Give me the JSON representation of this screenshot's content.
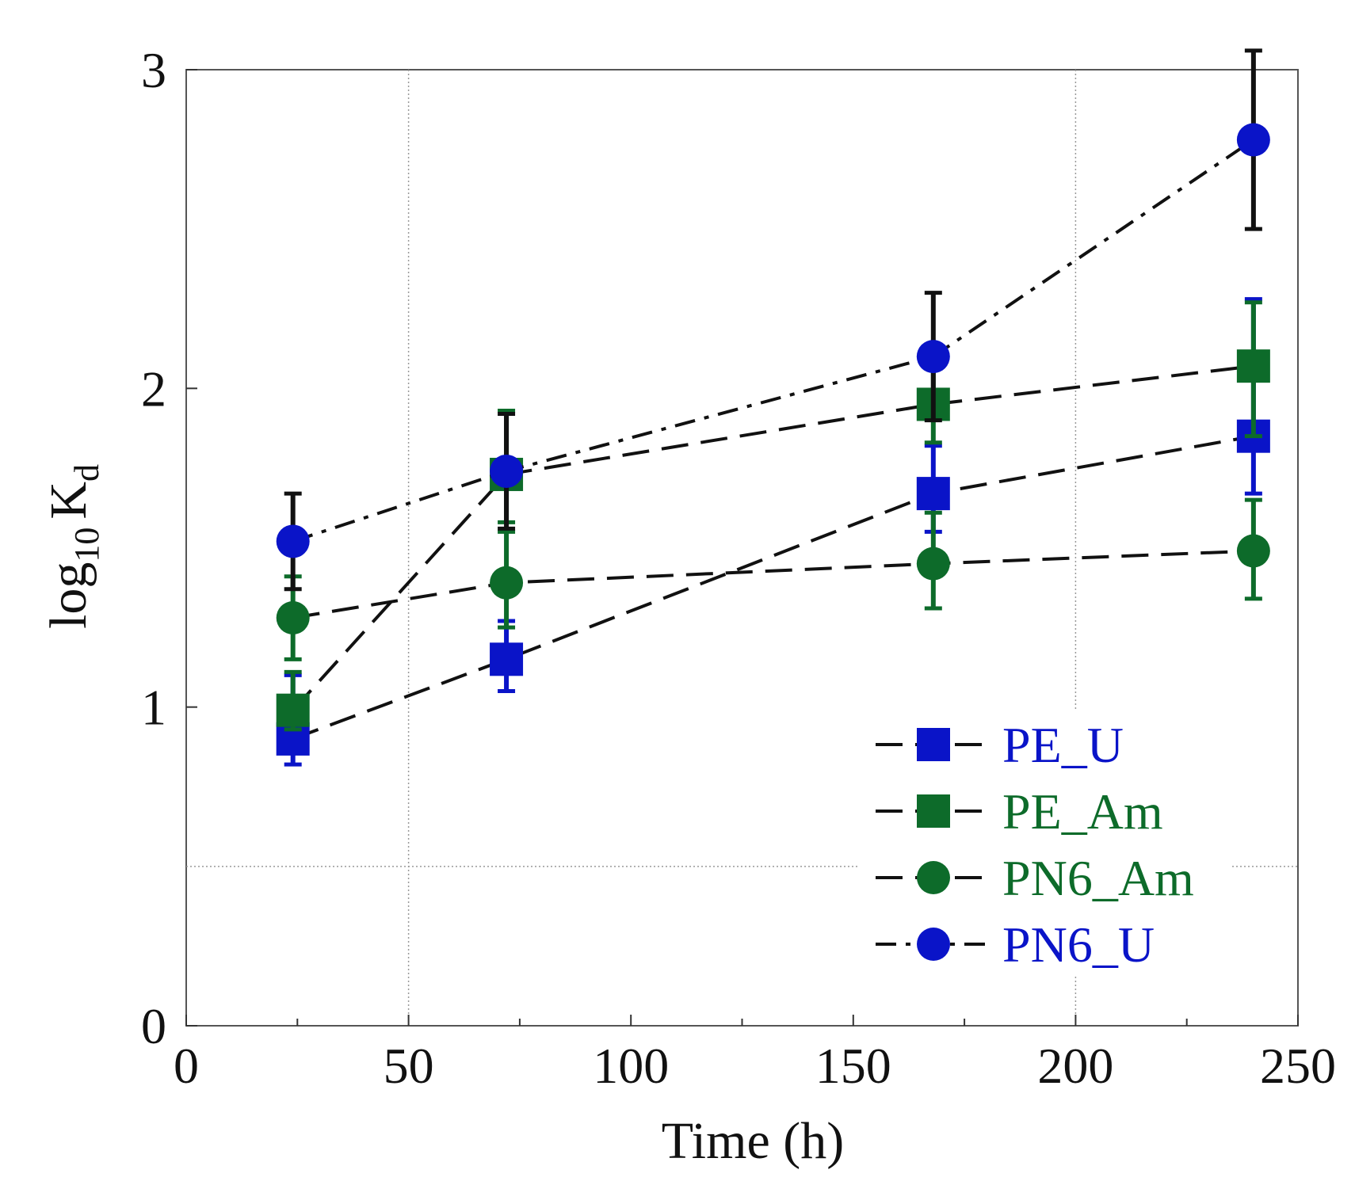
{
  "chart_data": {
    "type": "line",
    "xlabel": "Time (h)",
    "ylabel_main": "log",
    "ylabel_sub": "10",
    "ylabel_var": "K",
    "ylabel_var_sub": "d",
    "xlim": [
      0,
      250
    ],
    "ylim": [
      0,
      3
    ],
    "xticks": [
      0,
      50,
      100,
      150,
      200,
      250
    ],
    "xtick_labels": [
      "0",
      "50",
      "100",
      "150",
      "200",
      "250"
    ],
    "yticks": [
      0,
      1,
      2,
      3
    ],
    "ytick_labels": [
      "0",
      "1",
      "2",
      "3"
    ],
    "grid": {
      "vertical_x": [
        50,
        200
      ],
      "horizontal_y": [
        0.5
      ]
    },
    "legend_position": "bottom-right",
    "series": [
      {
        "name": "PE_U",
        "marker": "square",
        "color": "#0a14c8",
        "dash": "long",
        "x": [
          24,
          72,
          168,
          240
        ],
        "y": [
          0.9,
          1.15,
          1.67,
          1.85
        ],
        "err_low": [
          0.08,
          0.1,
          0.12,
          0.18
        ],
        "err_high": [
          0.2,
          0.12,
          0.15,
          0.43
        ]
      },
      {
        "name": "PE_Am",
        "marker": "square",
        "color": "#0d6b2a",
        "dash": "long",
        "x": [
          24,
          72,
          168,
          240
        ],
        "y": [
          0.99,
          1.73,
          1.95,
          2.07
        ],
        "err_low": [
          0.06,
          0.15,
          0.12,
          0.22
        ],
        "err_high": [
          0.12,
          0.2,
          0.12,
          0.2
        ]
      },
      {
        "name": "PN6_Am",
        "marker": "circle",
        "color": "#0d6b2a",
        "dash": "long",
        "x": [
          24,
          72,
          168,
          240
        ],
        "y": [
          1.28,
          1.39,
          1.45,
          1.49
        ],
        "err_low": [
          0.13,
          0.14,
          0.14,
          0.15
        ],
        "err_high": [
          0.13,
          0.16,
          0.16,
          0.16
        ]
      },
      {
        "name": "PN6_U",
        "marker": "circle",
        "color": "#0a14c8",
        "dash": "dashdot",
        "x": [
          24,
          72,
          168,
          240
        ],
        "y": [
          1.52,
          1.74,
          2.1,
          2.78
        ],
        "err_low": [
          0.15,
          0.18,
          0.2,
          0.28
        ],
        "err_high": [
          0.15,
          0.18,
          0.2,
          0.28
        ]
      }
    ]
  }
}
